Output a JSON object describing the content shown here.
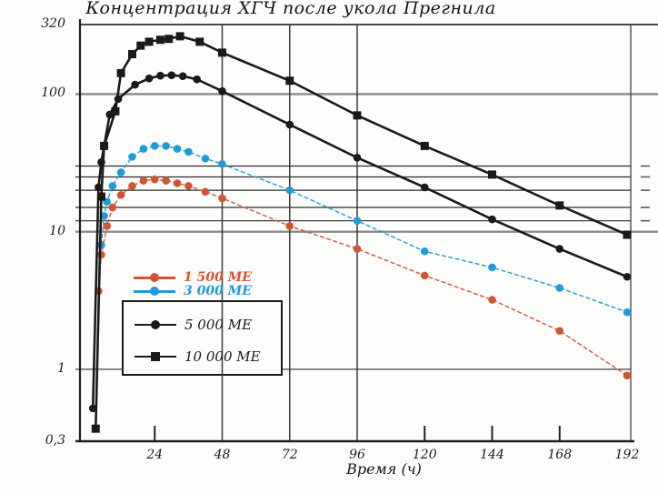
{
  "title": "Концентрация ХГЧ после укола Прегнила",
  "colors": {
    "series_1500": "#d05535",
    "series_3000": "#1f9cd8",
    "series_black": "#1a1a1a",
    "grid_major": "#8a8a8a",
    "grid_minor": "#2b2b2b",
    "axis": "#1f1f1f",
    "background": "#fdfdfc"
  },
  "chart_data": {
    "type": "line",
    "title": "Концентрация ХГЧ после укола Прегнила",
    "xlabel": "Время (ч)",
    "ylabel": "",
    "x_axis": {
      "min": 0,
      "max": 192,
      "ticks": [
        {
          "v": 24,
          "text": "24"
        },
        {
          "v": 48,
          "text": "48"
        },
        {
          "v": 72,
          "text": "72"
        },
        {
          "v": 96,
          "text": "96"
        },
        {
          "v": 120,
          "text": "120"
        },
        {
          "v": 144,
          "text": "144"
        },
        {
          "v": 168,
          "text": "168"
        },
        {
          "v": 192,
          "text": "192"
        }
      ],
      "full_gridlines": [
        48,
        72,
        96
      ],
      "tick_marks_only": [
        24,
        120,
        144,
        168
      ]
    },
    "y_axis": {
      "scale": "log",
      "min": 0.3,
      "max": 320,
      "tick_labels": [
        {
          "v": 320,
          "text": "320"
        },
        {
          "v": 100,
          "text": "100"
        },
        {
          "v": 10,
          "text": "10"
        },
        {
          "v": 1,
          "text": "1"
        },
        {
          "v": 0.3,
          "text": "0,3"
        }
      ],
      "major_gridlines": [
        100,
        10
      ],
      "gridlines": [
        1
      ],
      "reference_lines": [
        30,
        25,
        20,
        15,
        12
      ]
    },
    "legend_position": "inside-left-bottom",
    "series": [
      {
        "name": "1 500 МЕ",
        "color": "#d05535",
        "marker": "circle",
        "line_style": "dashed-thin",
        "points": [
          [
            4,
            3.7
          ],
          [
            5,
            6.8
          ],
          [
            7,
            11
          ],
          [
            9,
            15
          ],
          [
            12,
            18.5
          ],
          [
            16,
            21.5
          ],
          [
            20,
            23.5
          ],
          [
            24,
            24
          ],
          [
            28,
            23.5
          ],
          [
            32,
            22.5
          ],
          [
            36,
            21.5
          ],
          [
            42,
            19.5
          ],
          [
            48,
            17.5
          ],
          [
            72,
            11
          ],
          [
            96,
            7.5
          ],
          [
            120,
            4.8
          ],
          [
            144,
            3.2
          ],
          [
            168,
            1.9
          ],
          [
            192,
            0.9
          ]
        ]
      },
      {
        "name": "3 000 МЕ",
        "color": "#1f9cd8",
        "marker": "circle",
        "line_style": "dashed-thin",
        "points": [
          [
            5,
            8
          ],
          [
            6,
            13
          ],
          [
            7,
            16.5
          ],
          [
            9,
            21.5
          ],
          [
            12,
            27
          ],
          [
            16,
            35
          ],
          [
            20,
            40
          ],
          [
            24,
            42
          ],
          [
            28,
            42
          ],
          [
            32,
            40
          ],
          [
            36,
            38
          ],
          [
            42,
            34
          ],
          [
            48,
            31
          ],
          [
            72,
            20
          ],
          [
            96,
            12
          ],
          [
            120,
            7.2
          ],
          [
            144,
            5.5
          ],
          [
            168,
            3.9
          ],
          [
            192,
            2.6
          ]
        ]
      },
      {
        "name": "5 000 МЕ",
        "color": "#1a1a1a",
        "marker": "circle",
        "line_style": "solid",
        "points": [
          [
            2,
            0.52
          ],
          [
            4,
            21
          ],
          [
            5,
            32
          ],
          [
            6,
            42
          ],
          [
            8,
            71
          ],
          [
            11,
            92
          ],
          [
            17,
            117
          ],
          [
            22,
            130
          ],
          [
            26,
            136
          ],
          [
            30,
            137
          ],
          [
            34,
            135
          ],
          [
            39,
            128
          ],
          [
            48,
            105
          ],
          [
            72,
            60
          ],
          [
            96,
            34.5
          ],
          [
            120,
            21
          ],
          [
            144,
            12.3
          ],
          [
            168,
            7.5
          ],
          [
            192,
            4.7
          ]
        ]
      },
      {
        "name": "10 000 МЕ",
        "color": "#1a1a1a",
        "marker": "square",
        "line_style": "solid",
        "points": [
          [
            3,
            0.37
          ],
          [
            5,
            18
          ],
          [
            6,
            42
          ],
          [
            10,
            75
          ],
          [
            12,
            142
          ],
          [
            16,
            195
          ],
          [
            19,
            225
          ],
          [
            22,
            240
          ],
          [
            26,
            248
          ],
          [
            29,
            252
          ],
          [
            33,
            263
          ],
          [
            40,
            240
          ],
          [
            48,
            200
          ],
          [
            72,
            125
          ],
          [
            96,
            70
          ],
          [
            120,
            42
          ],
          [
            144,
            26
          ],
          [
            168,
            15.5
          ],
          [
            192,
            9.5
          ]
        ]
      }
    ]
  },
  "legend": {
    "boxed_entries": [
      "5 000 МЕ",
      "10 000 МЕ"
    ],
    "unboxed_entries": [
      "1 500 МЕ",
      "3 000 МЕ"
    ]
  }
}
